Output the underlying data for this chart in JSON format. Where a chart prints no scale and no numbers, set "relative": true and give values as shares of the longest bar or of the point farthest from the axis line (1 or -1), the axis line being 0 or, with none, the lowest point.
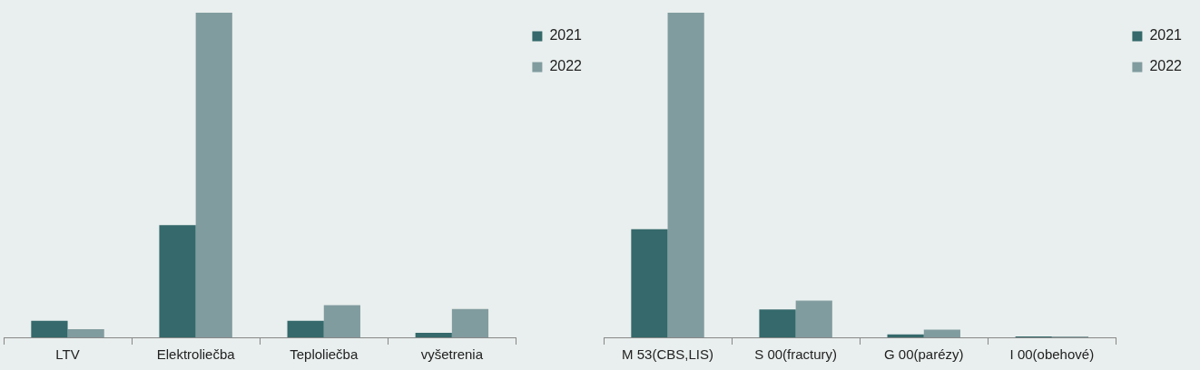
{
  "chart_data": [
    {
      "type": "bar",
      "relative": true,
      "legend": "right",
      "categories": [
        "LTV",
        "Elektroliečba",
        "Teploliečba",
        "vyšetrenia"
      ],
      "series": [
        {
          "name": "2021",
          "color": "#35696b",
          "values": [
            0.051,
            0.346,
            0.051,
            0.014
          ]
        },
        {
          "name": "2022",
          "color": "#819c9f",
          "values": [
            0.025,
            1,
            0.099,
            0.087
          ]
        }
      ]
    },
    {
      "type": "bar",
      "relative": true,
      "legend": "right",
      "categories": [
        "M 53(CBS,LIS)",
        "S 00(fractury)",
        "G 00(parézy)",
        "I 00(obehové)"
      ],
      "series": [
        {
          "name": "2021",
          "color": "#35696b",
          "values": [
            0.333,
            0.086,
            0.009,
            0.003
          ]
        },
        {
          "name": "2022",
          "color": "#819c9f",
          "values": [
            1,
            0.113,
            0.024,
            0.003
          ]
        }
      ]
    }
  ]
}
